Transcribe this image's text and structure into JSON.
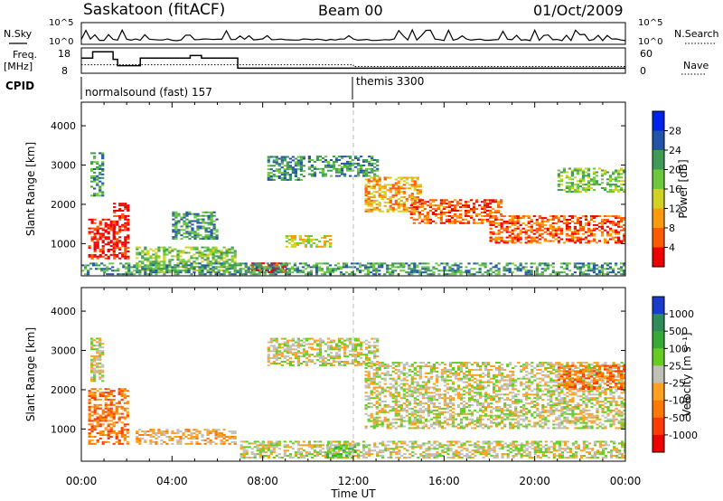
{
  "header": {
    "station": "Saskatoon (fitACF)",
    "beam": "Beam 00",
    "date": "01/Oct/2009"
  },
  "summary": {
    "nsky_label": "N.Sky",
    "nsearch_label": "N.Search",
    "freq_label_1": "Freq.",
    "freq_label_2": "[MHz]",
    "nave_label": "Nave",
    "cpid_label": "CPID",
    "noise_ticks_left": [
      "10^5",
      "10^0"
    ],
    "noise_ticks_right": [
      "10^5",
      "10^0"
    ],
    "freq_ticks": [
      "18",
      "8"
    ],
    "nave_ticks": [
      "60",
      "0"
    ],
    "cpid_segments": [
      {
        "start": 0,
        "end": 12,
        "label": "normalsound (fast) 157"
      },
      {
        "start": 12,
        "end": 24,
        "label": "themis 3300"
      }
    ],
    "freq_steps": [
      [
        0,
        14
      ],
      [
        0.5,
        16.5
      ],
      [
        1.4,
        13.5
      ],
      [
        1.6,
        11
      ],
      [
        2.6,
        14
      ],
      [
        4.8,
        15
      ],
      [
        5.3,
        14
      ],
      [
        6.9,
        10
      ],
      [
        24,
        10
      ]
    ],
    "nave_steps": [
      [
        0,
        20
      ],
      [
        12,
        16
      ],
      [
        24,
        16
      ]
    ]
  },
  "axes": {
    "ylabel": "Slant Range [km]",
    "xlabel": "Time UT",
    "range_ticks": [
      "1000",
      "2000",
      "3000",
      "4000"
    ],
    "time_ticks": [
      "00:00",
      "04:00",
      "08:00",
      "12:00",
      "16:00",
      "20:00",
      "00:00"
    ]
  },
  "chart_data": [
    {
      "type": "heatmap",
      "name": "power",
      "xlim": [
        0,
        24
      ],
      "ylim": [
        180,
        4600
      ],
      "grid": false,
      "colorbar_label": "Power [dB]",
      "colorbar_ticks": [
        "4",
        "8",
        "12",
        "16",
        "20",
        "24",
        "28"
      ],
      "colorbar_colors": [
        "#0022ee",
        "#2255aa",
        "#3f9a55",
        "#6cc83c",
        "#d2d222",
        "#ff9a0a",
        "#ff5a00",
        "#ee0000"
      ],
      "regions": [
        {
          "t0": 0.3,
          "t1": 1.5,
          "r0": 600,
          "r1": 1600,
          "level": 7
        },
        {
          "t0": 1.4,
          "t1": 2.1,
          "r0": 600,
          "r1": 2000,
          "level": 7
        },
        {
          "t0": 0.4,
          "t1": 1.0,
          "r0": 2200,
          "r1": 3300,
          "level": 2
        },
        {
          "t0": 2.4,
          "t1": 6.8,
          "r0": 250,
          "r1": 900,
          "level": 3
        },
        {
          "t0": 4.0,
          "t1": 6.0,
          "r0": 1100,
          "r1": 1800,
          "level": 2
        },
        {
          "t0": 7.5,
          "t1": 9.0,
          "r0": 250,
          "r1": 500,
          "level": 7
        },
        {
          "t0": 8.2,
          "t1": 9.8,
          "r0": 2600,
          "r1": 3200,
          "level": 2
        },
        {
          "t0": 9.0,
          "t1": 11.0,
          "r0": 900,
          "r1": 1200,
          "level": 4
        },
        {
          "t0": 10.0,
          "t1": 13.0,
          "r0": 2700,
          "r1": 3200,
          "level": 2
        },
        {
          "t0": 12.5,
          "t1": 15.0,
          "r0": 1800,
          "r1": 2700,
          "level": 5
        },
        {
          "t0": 14.5,
          "t1": 18.5,
          "r0": 1500,
          "r1": 2100,
          "level": 6
        },
        {
          "t0": 18.0,
          "t1": 24.0,
          "r0": 1000,
          "r1": 1700,
          "level": 6
        },
        {
          "t0": 21.0,
          "t1": 24.0,
          "r0": 2300,
          "r1": 2900,
          "level": 3
        },
        {
          "t0": 0.0,
          "t1": 24.0,
          "r0": 200,
          "r1": 500,
          "level": 2
        }
      ]
    },
    {
      "type": "heatmap",
      "name": "velocity",
      "xlim": [
        0,
        24
      ],
      "ylim": [
        180,
        4600
      ],
      "grid": false,
      "colorbar_label": "Velocity [m s⁻¹]",
      "colorbar_ticks": [
        "1000",
        "500",
        "100",
        "25",
        "-25",
        "-100",
        "-500",
        "-1000"
      ],
      "colorbar_colors": [
        "#1a3ccc",
        "#2f8c5a",
        "#36aa36",
        "#66cc22",
        "#c0c0b8",
        "#ffa020",
        "#ff7800",
        "#ff3a00",
        "#ee0000"
      ],
      "regions": [
        {
          "t0": 0.3,
          "t1": 2.1,
          "r0": 600,
          "r1": 2000,
          "level": 6
        },
        {
          "t0": 0.4,
          "t1": 1.0,
          "r0": 2200,
          "r1": 3300,
          "level": 4
        },
        {
          "t0": 2.4,
          "t1": 6.8,
          "r0": 600,
          "r1": 1000,
          "level": 5
        },
        {
          "t0": 7.0,
          "t1": 24.0,
          "r0": 250,
          "r1": 700,
          "level": 4
        },
        {
          "t0": 10.8,
          "t1": 12.0,
          "r0": 250,
          "r1": 600,
          "level": 3
        },
        {
          "t0": 8.2,
          "t1": 13.0,
          "r0": 2600,
          "r1": 3300,
          "level": 4
        },
        {
          "t0": 12.5,
          "t1": 24.0,
          "r0": 1000,
          "r1": 2700,
          "level": 4
        },
        {
          "t0": 21.0,
          "t1": 24.0,
          "r0": 2000,
          "r1": 2600,
          "level": 6
        }
      ]
    }
  ]
}
